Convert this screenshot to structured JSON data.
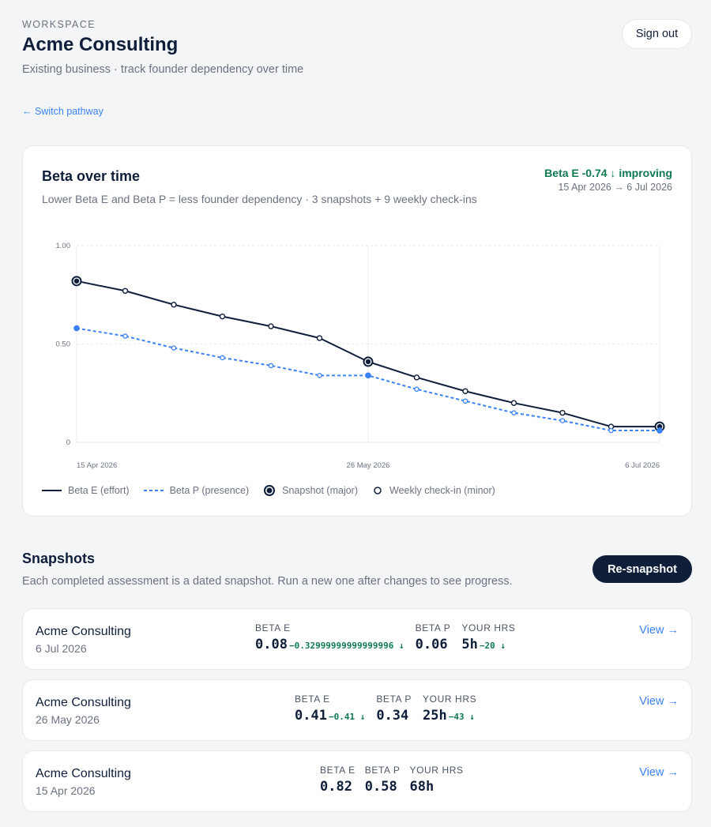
{
  "header": {
    "eyebrow": "WORKSPACE",
    "title": "Acme Consulting",
    "subtitle": "Existing business · track founder dependency over time",
    "signout_label": "Sign out"
  },
  "nav": {
    "switch_label": "← Switch pathway"
  },
  "chart_card": {
    "title": "Beta over time",
    "subtitle": "Lower Beta E and Beta P = less founder dependency · 3 snapshots + 9 weekly check-ins",
    "trend": "Beta E -0.74 ↓ improving",
    "range": "15 Apr 2026 → 6 Jul 2026"
  },
  "chart_data": {
    "type": "line",
    "x": [
      "15 Apr 2026",
      "22 Apr 2026",
      "29 Apr 2026",
      "6 May 2026",
      "13 May 2026",
      "20 May 2026",
      "26 May 2026",
      "2 Jun 2026",
      "9 Jun 2026",
      "16 Jun 2026",
      "23 Jun 2026",
      "30 Jun 2026",
      "6 Jul 2026"
    ],
    "x_tick_labels": [
      "15 Apr 2026",
      "26 May 2026",
      "6 Jul 2026"
    ],
    "x_tick_index": [
      0,
      6,
      12
    ],
    "y_tick_labels": [
      "1.00",
      "0.50",
      "0"
    ],
    "y_tick_values": [
      1.0,
      0.5,
      0
    ],
    "ylim": [
      0,
      1
    ],
    "snapshot_index": [
      0,
      6,
      12
    ],
    "grid": true,
    "legend": "bottom-left",
    "series": [
      {
        "name": "Beta E (effort)",
        "style": "solid",
        "color": "#0f1f3a",
        "values": [
          0.82,
          0.77,
          0.7,
          0.64,
          0.59,
          0.53,
          0.41,
          0.33,
          0.26,
          0.2,
          0.15,
          0.08,
          0.08
        ]
      },
      {
        "name": "Beta P (presence)",
        "style": "dashed",
        "color": "#3b82f6",
        "values": [
          0.58,
          0.54,
          0.48,
          0.43,
          0.39,
          0.34,
          0.34,
          0.27,
          0.21,
          0.15,
          0.11,
          0.06,
          0.06
        ]
      }
    ],
    "legend_markers": [
      "Snapshot (major)",
      "Weekly check-in (minor)"
    ]
  },
  "snapshots": {
    "title": "Snapshots",
    "subtitle": "Each completed assessment is a dated snapshot. Run a new one after changes to see progress.",
    "resnap_label": "Re-snapshot",
    "labels": {
      "beta_e": "BETA E",
      "beta_p": "BETA P",
      "hrs": "YOUR HRS"
    },
    "view_label": "View →",
    "items": [
      {
        "name": "Acme Consulting",
        "date": "6 Jul 2026",
        "beta_e": "0.08",
        "beta_e_delta": "−0.32999999999999996 ↓",
        "beta_p": "0.06",
        "beta_p_delta": "",
        "hrs": "5h",
        "hrs_delta": "−20 ↓"
      },
      {
        "name": "Acme Consulting",
        "date": "26 May 2026",
        "beta_e": "0.41",
        "beta_e_delta": "−0.41 ↓",
        "beta_p": "0.34",
        "beta_p_delta": "",
        "hrs": "25h",
        "hrs_delta": "−43 ↓"
      },
      {
        "name": "Acme Consulting",
        "date": "15 Apr 2026",
        "beta_e": "0.82",
        "beta_e_delta": "",
        "beta_p": "0.58",
        "beta_p_delta": "",
        "hrs": "68h",
        "hrs_delta": ""
      }
    ]
  }
}
